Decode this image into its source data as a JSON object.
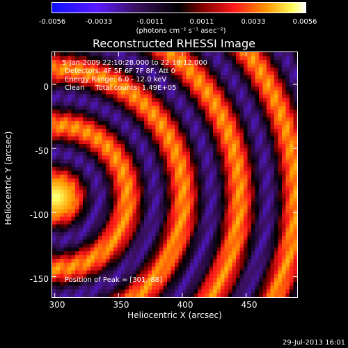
{
  "chart_data": {
    "type": "heatmap",
    "title": "Reconstructed RHESSI Image",
    "colorbar": {
      "ticks": [
        "-0.0056",
        "-0.0033",
        "-0.0011",
        "0.0011",
        "0.0033",
        "0.0056"
      ],
      "units_label": "(photons cm⁻² s⁻¹ asec⁻²)",
      "range": [
        -0.0056,
        0.0056
      ]
    },
    "annotations": [
      "5-Jan-2009 22:10:28.000 to 22:18:12.000",
      "Detectors: 4F 5F 6F 7F 8F, Att 0",
      "Energy Range: 6.0 - 12.0 keV",
      "Clean     Total counts: 1.49E+05"
    ],
    "peak_text": "Position of Peak = [301,-88]",
    "peak": [
      301,
      -88
    ],
    "xlabel": "Heliocentric X (arcsec)",
    "ylabel": "Heliocentric Y (arcsec)",
    "xlim": [
      298,
      490
    ],
    "ylim": [
      -166,
      25
    ],
    "xticks": [
      "300",
      "350",
      "400",
      "450"
    ],
    "yticks": [
      "0",
      "-50",
      "-100",
      "-150"
    ],
    "xtick_values": [
      300,
      350,
      400,
      450
    ],
    "ytick_values": [
      0,
      -50,
      -100,
      -150
    ]
  },
  "footer_date": "29-Jul-2013 16:01"
}
